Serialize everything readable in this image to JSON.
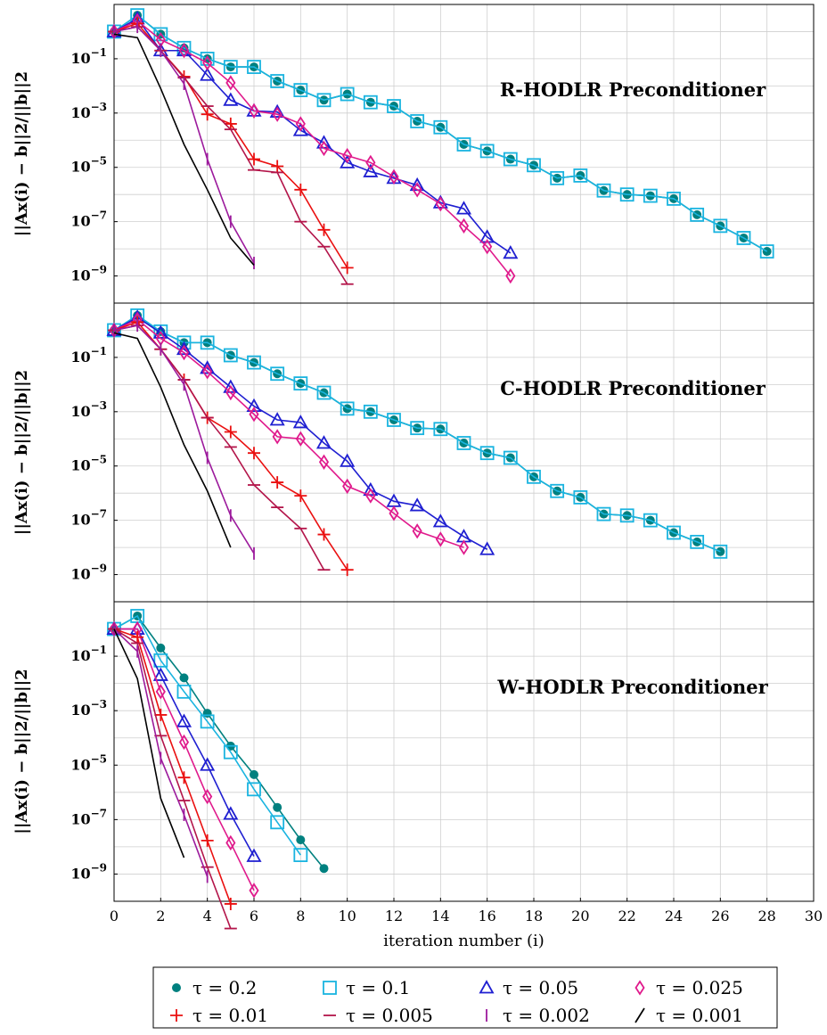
{
  "chart_data": {
    "type": "line",
    "xlabel": "iteration number (i)",
    "ylabel": "||Ax(i) − b||2/||b||2",
    "xlim": [
      0,
      30
    ],
    "ylim_log10": [
      -10,
      1
    ],
    "y_scale": "log",
    "x_ticks": [
      "0",
      "2",
      "4",
      "6",
      "8",
      "10",
      "12",
      "14",
      "16",
      "18",
      "20",
      "22",
      "24",
      "26",
      "28",
      "30"
    ],
    "y_ticks": [
      {
        "base": "10",
        "exp": "−1",
        "value": 0.1
      },
      {
        "base": "10",
        "exp": "−3",
        "value": 0.001
      },
      {
        "base": "10",
        "exp": "−5",
        "value": 1e-05
      },
      {
        "base": "10",
        "exp": "−7",
        "value": 1e-07
      },
      {
        "base": "10",
        "exp": "−9",
        "value": 1e-09
      }
    ],
    "grid": true,
    "legend_position": "bottom",
    "series_styles": [
      {
        "label": "τ = 0.2",
        "color": "#00807f",
        "marker": "dot"
      },
      {
        "label": "τ = 0.1",
        "color": "#1ab4e0",
        "marker": "square"
      },
      {
        "label": "τ = 0.05",
        "color": "#1f1fd1",
        "marker": "triangle"
      },
      {
        "label": "τ = 0.025",
        "color": "#e01a8c",
        "marker": "diamond"
      },
      {
        "label": "τ = 0.01",
        "color": "#ea1010",
        "marker": "plus"
      },
      {
        "label": "τ = 0.005",
        "color": "#b3154a",
        "marker": "hbar"
      },
      {
        "label": "τ = 0.002",
        "color": "#9c1a9c",
        "marker": "vbar"
      },
      {
        "label": "τ = 0.001",
        "color": "#000000",
        "marker": "slash"
      }
    ],
    "panels": [
      {
        "title": "R-HODLR Preconditioner",
        "series": [
          {
            "x": [
              0,
              1,
              2,
              3,
              4,
              5,
              6,
              7,
              8,
              9,
              10,
              11,
              12,
              13,
              14,
              15,
              16,
              17,
              18,
              19,
              20,
              21,
              22,
              23,
              24,
              25,
              26,
              27,
              28
            ],
            "y": [
              1,
              4,
              0.8,
              0.25,
              0.1,
              0.05,
              0.05,
              0.015,
              0.007,
              0.003,
              0.005,
              0.0025,
              0.0018,
              0.0005,
              0.0003,
              7e-05,
              4e-05,
              2e-05,
              1.2e-05,
              4e-06,
              5e-06,
              1.4e-06,
              1e-06,
              9e-07,
              7e-07,
              1.8e-07,
              7e-08,
              2.5e-08,
              8e-09
            ]
          },
          {
            "x": [
              0,
              1,
              2,
              3,
              4,
              5,
              6,
              7,
              8,
              9,
              10,
              11,
              12,
              13,
              14,
              15,
              16,
              17,
              18,
              19,
              20,
              21,
              22,
              23,
              24,
              25,
              26,
              27,
              28
            ],
            "y": [
              1,
              4,
              0.8,
              0.25,
              0.1,
              0.05,
              0.05,
              0.015,
              0.007,
              0.003,
              0.005,
              0.0025,
              0.0018,
              0.0005,
              0.0003,
              7e-05,
              4e-05,
              2e-05,
              1.2e-05,
              4e-06,
              5e-06,
              1.4e-06,
              1e-06,
              9e-07,
              7e-07,
              1.8e-07,
              7e-08,
              2.5e-08,
              8e-09
            ]
          },
          {
            "x": [
              0,
              1,
              2,
              3,
              4,
              5,
              6,
              7,
              8,
              9,
              10,
              11,
              12,
              13,
              14,
              15,
              16,
              17
            ],
            "y": [
              1,
              3,
              0.2,
              0.2,
              0.025,
              0.003,
              0.0012,
              0.0011,
              0.00023,
              8e-05,
              1.5e-05,
              7e-06,
              4e-06,
              2.2e-06,
              5e-07,
              3e-07,
              2.7e-08,
              7e-09
            ]
          },
          {
            "x": [
              0,
              1,
              2,
              3,
              4,
              5,
              6,
              7,
              8,
              9,
              10,
              11,
              12,
              13,
              14,
              15,
              16,
              17
            ],
            "y": [
              1,
              2.5,
              0.5,
              0.2,
              0.07,
              0.013,
              0.0012,
              0.0009,
              0.0004,
              5e-05,
              2.7e-05,
              1.5e-05,
              4.5e-06,
              1.5e-06,
              4.5e-07,
              7e-08,
              1.2e-08,
              1e-09
            ]
          },
          {
            "x": [
              0,
              1,
              2,
              3,
              4,
              5,
              6,
              7,
              8,
              9,
              10
            ],
            "y": [
              1,
              2,
              0.2,
              0.022,
              0.0009,
              0.0004,
              2e-05,
              1.1e-05,
              1.5e-06,
              5e-08,
              2e-09
            ]
          },
          {
            "x": [
              0,
              1,
              2,
              3,
              4,
              5,
              6,
              7,
              8,
              9,
              10
            ],
            "y": [
              1,
              1.5,
              0.2,
              0.02,
              0.0018,
              0.00025,
              8e-06,
              6.5e-06,
              1e-07,
              1.2e-08,
              5e-10
            ]
          },
          {
            "x": [
              0,
              1,
              2,
              3,
              4,
              5,
              6
            ],
            "y": [
              1,
              1.5,
              0.2,
              0.012,
              2e-05,
              1e-07,
              3e-09
            ]
          },
          {
            "x": [
              0,
              1,
              2,
              3,
              4,
              5,
              6
            ],
            "y": [
              0.8,
              0.6,
              0.008,
              7e-05,
              1.5e-06,
              2.5e-08,
              2.5e-09
            ]
          }
        ]
      },
      {
        "title": "C-HODLR Preconditioner",
        "series": [
          {
            "x": [
              0,
              1,
              2,
              3,
              4,
              5,
              6,
              7,
              8,
              9,
              10,
              11,
              12,
              13,
              14,
              15,
              16,
              17,
              18,
              19,
              20,
              21,
              22,
              23,
              24,
              25,
              26
            ],
            "y": [
              1,
              3.5,
              0.9,
              0.35,
              0.35,
              0.12,
              0.065,
              0.025,
              0.011,
              0.005,
              0.0013,
              0.001,
              0.0005,
              0.00025,
              0.00023,
              7e-05,
              3e-05,
              2e-05,
              4e-06,
              1.2e-06,
              7e-07,
              1.7e-07,
              1.5e-07,
              1e-07,
              3.5e-08,
              1.6e-08,
              7e-09
            ]
          },
          {
            "x": [
              0,
              1,
              2,
              3,
              4,
              5,
              6,
              7,
              8,
              9,
              10,
              11,
              12,
              13,
              14,
              15,
              16,
              17,
              18,
              19,
              20,
              21,
              22,
              23,
              24,
              25,
              26
            ],
            "y": [
              1,
              3.5,
              0.9,
              0.35,
              0.35,
              0.12,
              0.065,
              0.025,
              0.011,
              0.005,
              0.0013,
              0.001,
              0.0005,
              0.00025,
              0.00023,
              7e-05,
              3e-05,
              2e-05,
              4e-06,
              1.2e-06,
              7e-07,
              1.7e-07,
              1.5e-07,
              1e-07,
              3.5e-08,
              1.6e-08,
              7e-09
            ]
          },
          {
            "x": [
              0,
              1,
              2,
              3,
              4,
              5,
              6,
              7,
              8,
              9,
              10,
              11,
              12,
              13,
              14,
              15,
              16
            ],
            "y": [
              1,
              3,
              0.8,
              0.2,
              0.04,
              0.008,
              0.0016,
              0.0005,
              0.0004,
              7e-05,
              1.5e-05,
              1.3e-06,
              5e-07,
              3.5e-07,
              9e-08,
              2.5e-08,
              8.5e-09
            ]
          },
          {
            "x": [
              0,
              1,
              2,
              3,
              4,
              5,
              6,
              7,
              8,
              9,
              10,
              11,
              12,
              13,
              14,
              15
            ],
            "y": [
              1,
              2.5,
              0.5,
              0.15,
              0.03,
              0.005,
              0.0008,
              0.00012,
              0.0001,
              1.4e-05,
              1.8e-06,
              8e-07,
              1.8e-07,
              4e-08,
              2e-08,
              1e-08
            ]
          },
          {
            "x": [
              0,
              1,
              2,
              3,
              4,
              5,
              6,
              7,
              8,
              9,
              10
            ],
            "y": [
              1,
              2,
              0.2,
              0.015,
              0.0006,
              0.00018,
              3e-05,
              2.5e-06,
              8e-07,
              3e-08,
              1.5e-09
            ]
          },
          {
            "x": [
              0,
              1,
              2,
              3,
              4,
              5,
              6,
              7,
              8,
              9
            ],
            "y": [
              1,
              1.5,
              0.2,
              0.015,
              0.0006,
              5e-05,
              2e-06,
              3e-07,
              5e-08,
              1.5e-09
            ]
          },
          {
            "x": [
              0,
              1,
              2,
              3,
              4,
              5,
              6
            ],
            "y": [
              1,
              1.5,
              0.2,
              0.01,
              2e-05,
              1.5e-07,
              6e-09
            ]
          },
          {
            "x": [
              0,
              1,
              2,
              3,
              4,
              5
            ],
            "y": [
              0.8,
              0.5,
              0.008,
              6e-05,
              1.2e-06,
              1e-08
            ]
          }
        ]
      },
      {
        "title": "W-HODLR Preconditioner",
        "series": [
          {
            "x": [
              0,
              1,
              2,
              3,
              4,
              5,
              6,
              7,
              8,
              9
            ],
            "y": [
              1,
              3,
              0.2,
              0.016,
              0.0008,
              5e-05,
              4.5e-06,
              2.8e-07,
              1.8e-08,
              1.6e-09
            ]
          },
          {
            "x": [
              0,
              1,
              2,
              3,
              4,
              5,
              6,
              7,
              8
            ],
            "y": [
              1,
              3,
              0.07,
              0.005,
              0.0004,
              3e-05,
              1.3e-06,
              8e-08,
              5e-09
            ]
          },
          {
            "x": [
              0,
              1,
              2,
              3,
              4,
              5,
              6
            ],
            "y": [
              1,
              1,
              0.02,
              0.0004,
              1e-05,
              1.6e-07,
              4.5e-09
            ]
          },
          {
            "x": [
              0,
              1,
              2,
              3,
              4,
              5,
              6
            ],
            "y": [
              1,
              1,
              0.005,
              7e-05,
              7e-07,
              1.4e-08,
              2.5e-10
            ]
          },
          {
            "x": [
              0,
              1,
              2,
              3,
              4,
              5
            ],
            "y": [
              1,
              0.5,
              0.0007,
              3.5e-06,
              1.7e-08,
              8e-11
            ]
          },
          {
            "x": [
              0,
              1,
              2,
              3,
              4,
              5
            ],
            "y": [
              1,
              0.3,
              0.00012,
              5e-07,
              1.8e-09,
              1e-11
            ]
          },
          {
            "x": [
              0,
              1,
              2,
              3,
              4
            ],
            "y": [
              1,
              0.15,
              1.8e-05,
              1.5e-07,
              8e-10
            ]
          },
          {
            "x": [
              0,
              1,
              2,
              3
            ],
            "y": [
              1,
              0.015,
              6e-07,
              4e-09
            ]
          }
        ]
      }
    ]
  }
}
